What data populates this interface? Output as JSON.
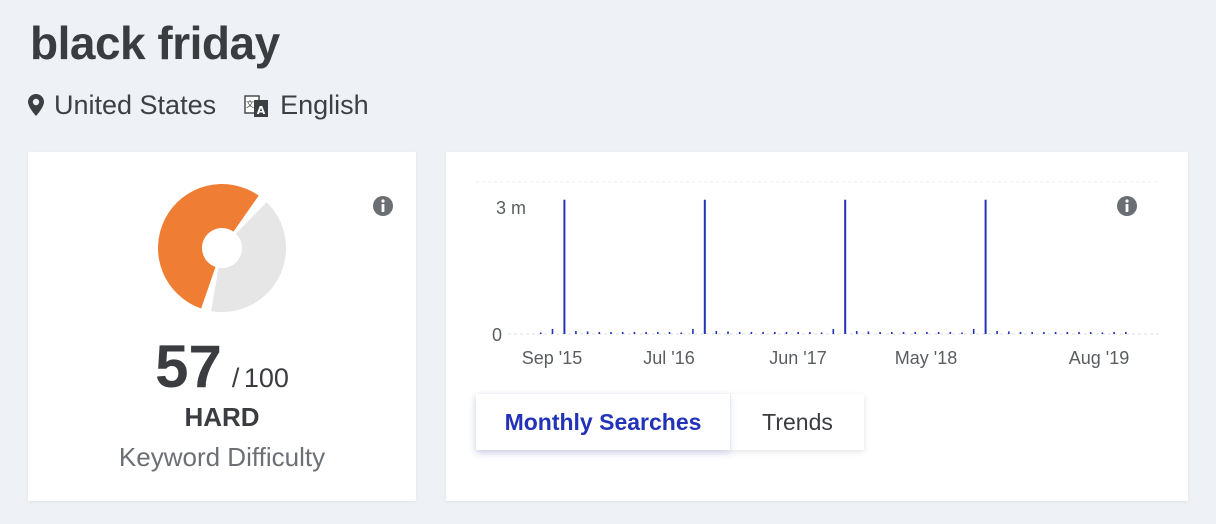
{
  "keyword": {
    "title": "black friday",
    "location": "United States",
    "language": "English"
  },
  "icons": {
    "location": "map-pin-icon",
    "language": "translate-icon",
    "info": "info-icon"
  },
  "difficulty": {
    "value": "57",
    "separator": "/",
    "max": "100",
    "level": "HARD",
    "label": "Keyword Difficulty",
    "fraction": 0.57,
    "colors": {
      "filled": "#ef7d33",
      "empty": "#e6e6e6"
    }
  },
  "chart_data": {
    "type": "bar",
    "title": "",
    "xlabel": "",
    "ylabel": "",
    "ylim": [
      0,
      3000000
    ],
    "yticks": [
      "0",
      "3 m"
    ],
    "xticks": [
      "Sep '15",
      "Jul '16",
      "Jun '17",
      "May '18",
      "Aug '19"
    ],
    "grid": true,
    "bar_color": "#2333b8",
    "start_month": "Jul '15",
    "values": [
      5000,
      100000,
      2650000,
      60000,
      50000,
      40000,
      40000,
      40000,
      40000,
      40000,
      40000,
      40000,
      5000,
      100000,
      2650000,
      60000,
      50000,
      40000,
      40000,
      40000,
      40000,
      40000,
      40000,
      40000,
      5000,
      100000,
      2650000,
      60000,
      50000,
      40000,
      40000,
      40000,
      40000,
      40000,
      40000,
      40000,
      5000,
      100000,
      2650000,
      60000,
      50000,
      40000,
      40000,
      40000,
      40000,
      40000,
      40000,
      40000,
      5000,
      40000,
      40000
    ]
  },
  "tabs": {
    "monthly": "Monthly Searches",
    "trends": "Trends",
    "active": "monthly"
  }
}
